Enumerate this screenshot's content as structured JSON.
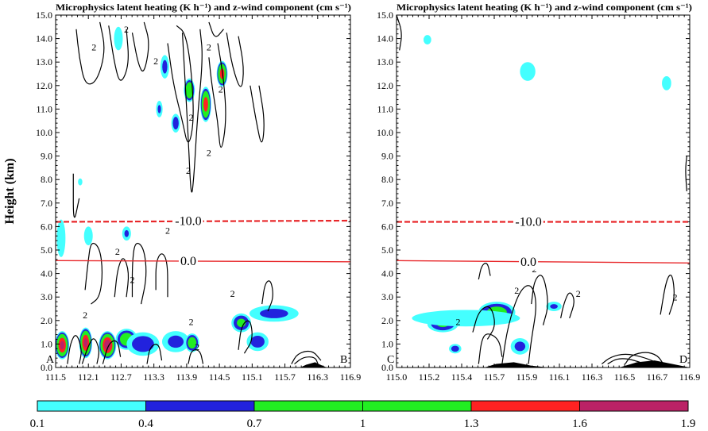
{
  "chart_data": [
    {
      "type": "heatmap",
      "title": "Microphysics latent heating (K h⁻¹) and z-wind component (cm s⁻¹)",
      "ylabel": "Height (km)",
      "ylim": [
        0.0,
        15.0
      ],
      "yticks": [
        "0.0",
        "1.0",
        "2.0",
        "3.0",
        "4.0",
        "5.0",
        "6.0",
        "7.0",
        "8.0",
        "9.0",
        "10.0",
        "11.0",
        "12.0",
        "13.0",
        "14.0",
        "15.0"
      ],
      "xlim": [
        111.5,
        116.9
      ],
      "xticks": [
        "111.5",
        "112.1",
        "112.7",
        "113.3",
        "113.9",
        "114.5",
        "115.1",
        "115.7",
        "116.3",
        "116.9"
      ],
      "section_start": "A",
      "section_end": "B",
      "isotherms": [
        {
          "label": "-10.0",
          "style": "dashed",
          "y_start": 6.2,
          "y_end": 6.25
        },
        {
          "label": "0.0",
          "style": "solid",
          "y_start": 4.55,
          "y_end": 4.5
        }
      ],
      "contour_label": "2",
      "heating_cells": [
        {
          "x": 111.62,
          "y": 0.95,
          "peak": 1.7,
          "w": 0.13,
          "h": 0.6
        },
        {
          "x": 112.05,
          "y": 1.05,
          "peak": 1.7,
          "w": 0.12,
          "h": 0.65
        },
        {
          "x": 112.45,
          "y": 0.95,
          "peak": 1.8,
          "w": 0.16,
          "h": 0.6
        },
        {
          "x": 112.8,
          "y": 1.2,
          "peak": 1.0,
          "w": 0.2,
          "h": 0.45
        },
        {
          "x": 113.1,
          "y": 1.0,
          "peak": 0.6,
          "w": 0.3,
          "h": 0.5
        },
        {
          "x": 113.7,
          "y": 1.1,
          "peak": 0.5,
          "w": 0.25,
          "h": 0.45
        },
        {
          "x": 114.0,
          "y": 1.05,
          "peak": 1.0,
          "w": 0.13,
          "h": 0.4
        },
        {
          "x": 114.9,
          "y": 1.9,
          "peak": 0.8,
          "w": 0.18,
          "h": 0.4
        },
        {
          "x": 115.2,
          "y": 1.1,
          "peak": 0.55,
          "w": 0.2,
          "h": 0.4
        },
        {
          "x": 115.5,
          "y": 2.3,
          "peak": 0.5,
          "w": 0.45,
          "h": 0.35
        },
        {
          "x": 114.55,
          "y": 12.5,
          "peak": 1.5,
          "w": 0.1,
          "h": 0.55
        },
        {
          "x": 114.25,
          "y": 11.2,
          "peak": 1.5,
          "w": 0.1,
          "h": 0.75
        },
        {
          "x": 113.95,
          "y": 11.8,
          "peak": 1.2,
          "w": 0.1,
          "h": 0.5
        },
        {
          "x": 113.7,
          "y": 10.4,
          "peak": 0.6,
          "w": 0.08,
          "h": 0.4
        },
        {
          "x": 113.5,
          "y": 12.8,
          "peak": 0.5,
          "w": 0.08,
          "h": 0.5
        },
        {
          "x": 113.4,
          "y": 11.0,
          "peak": 0.45,
          "w": 0.06,
          "h": 0.35
        },
        {
          "x": 112.8,
          "y": 5.7,
          "peak": 0.45,
          "w": 0.08,
          "h": 0.3
        },
        {
          "x": 111.6,
          "y": 5.5,
          "peak": 0.2,
          "w": 0.08,
          "h": 0.8
        },
        {
          "x": 112.1,
          "y": 5.6,
          "peak": 0.2,
          "w": 0.08,
          "h": 0.4
        },
        {
          "x": 112.65,
          "y": 14.0,
          "peak": 0.25,
          "w": 0.08,
          "h": 0.5
        },
        {
          "x": 111.95,
          "y": 7.9,
          "peak": 0.2,
          "w": 0.04,
          "h": 0.15
        }
      ]
    },
    {
      "type": "heatmap",
      "title": "Microphysics latent heating (K h⁻¹) and z-wind component (cm s⁻¹)",
      "ylim": [
        0.0,
        15.0
      ],
      "yticks": [
        "0.0",
        "1.0",
        "2.0",
        "3.0",
        "4.0",
        "5.0",
        "6.0",
        "7.0",
        "8.0",
        "9.0",
        "10.0",
        "11.0",
        "12.0",
        "13.0",
        "14.0",
        "15.0"
      ],
      "xlim": [
        115.0,
        116.9
      ],
      "xticks": [
        "115.0",
        "115.2",
        "115.4",
        "115.7",
        "115.9",
        "116.1",
        "116.3",
        "116.5",
        "116.7",
        "116.9"
      ],
      "section_start": "C",
      "section_end": "D",
      "isotherms": [
        {
          "label": "-10.0",
          "style": "dashed",
          "y_start": 6.2,
          "y_end": 6.2
        },
        {
          "label": "0.0",
          "style": "solid",
          "y_start": 4.55,
          "y_end": 4.45
        }
      ],
      "contour_label": "2",
      "heating_cells": [
        {
          "x": 115.65,
          "y": 2.35,
          "peak": 0.9,
          "w": 0.12,
          "h": 0.45
        },
        {
          "x": 115.3,
          "y": 1.85,
          "peak": 0.75,
          "w": 0.1,
          "h": 0.35
        },
        {
          "x": 115.45,
          "y": 2.1,
          "peak": 0.3,
          "w": 0.35,
          "h": 0.35
        },
        {
          "x": 115.8,
          "y": 0.9,
          "peak": 0.5,
          "w": 0.06,
          "h": 0.35
        },
        {
          "x": 115.38,
          "y": 0.8,
          "peak": 0.55,
          "w": 0.04,
          "h": 0.2
        },
        {
          "x": 116.02,
          "y": 2.6,
          "peak": 0.45,
          "w": 0.05,
          "h": 0.2
        },
        {
          "x": 115.85,
          "y": 12.6,
          "peak": 0.25,
          "w": 0.05,
          "h": 0.4
        },
        {
          "x": 116.75,
          "y": 12.1,
          "peak": 0.25,
          "w": 0.03,
          "h": 0.3
        },
        {
          "x": 115.2,
          "y": 13.95,
          "peak": 0.2,
          "w": 0.025,
          "h": 0.2
        }
      ]
    }
  ],
  "colorbar": {
    "ticks": [
      "0.1",
      "0.4",
      "0.7",
      "1",
      "1.3",
      "1.6",
      "1.9"
    ],
    "bins": [
      {
        "from": 0.1,
        "to": 0.4,
        "color": "#44ffff"
      },
      {
        "from": 0.4,
        "to": 0.7,
        "color": "#2222dd"
      },
      {
        "from": 0.7,
        "to": 1.0,
        "color": "#22ee22"
      },
      {
        "from": 1.0,
        "to": 1.3,
        "color": "#22ee22"
      },
      {
        "from": 1.3,
        "to": 1.6,
        "color": "#ff2222"
      },
      {
        "from": 1.6,
        "to": 1.9,
        "color": "#bb2266"
      }
    ]
  },
  "colors": {
    "isotherm": "#e8272a",
    "contour": "#000000",
    "frame": "#000000"
  }
}
